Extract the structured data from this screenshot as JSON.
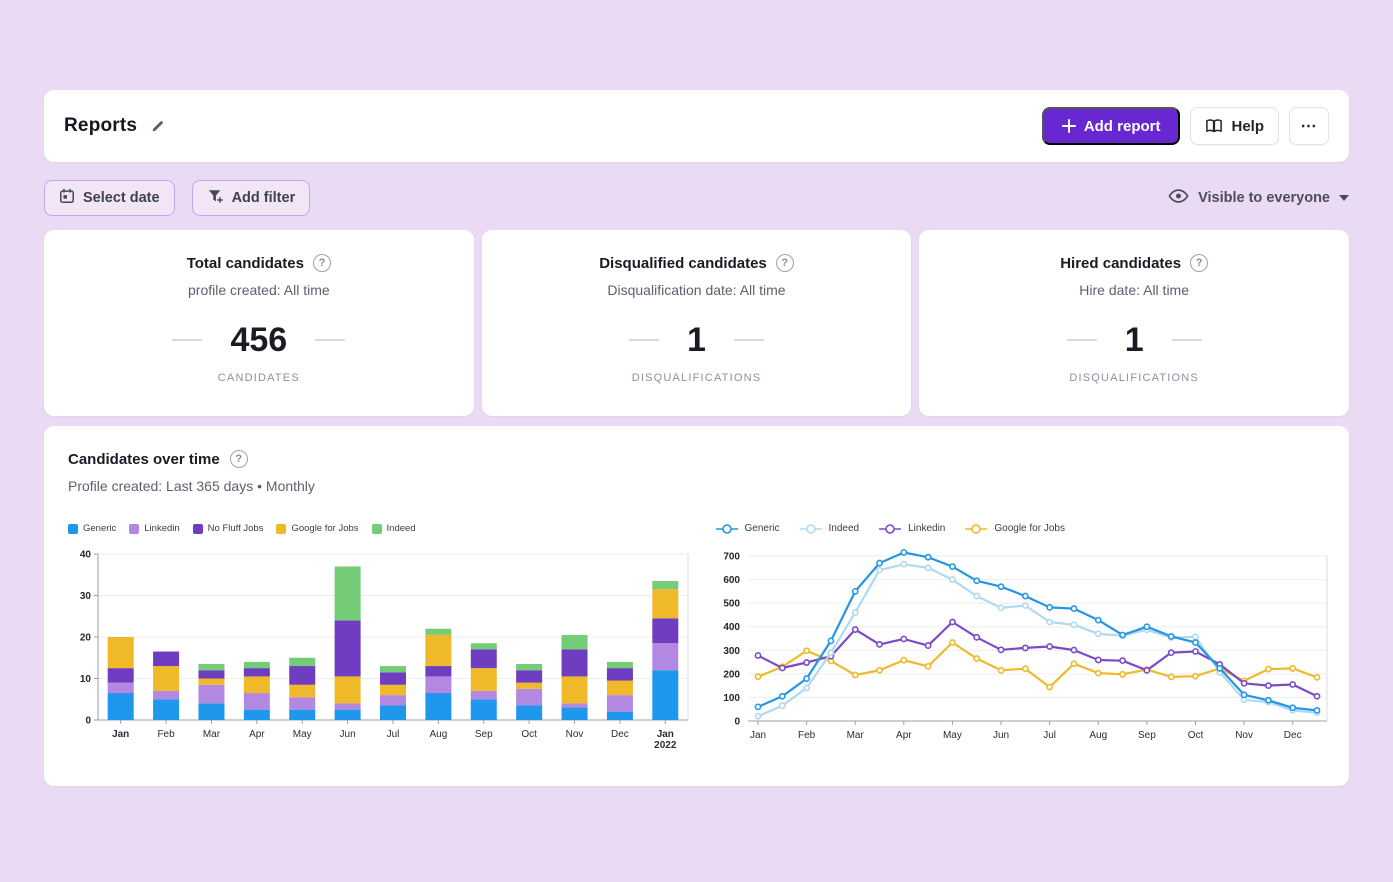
{
  "header": {
    "title": "Reports",
    "add_report_label": "Add report",
    "help_label": "Help",
    "more_label": "⋯"
  },
  "filters": {
    "select_date_label": "Select date",
    "add_filter_label": "Add filter",
    "visibility_label": "Visible to everyone"
  },
  "stats": [
    {
      "title": "Total candidates",
      "subtitle": "profile created: All time",
      "value": "456",
      "unit": "CANDIDATES"
    },
    {
      "title": "Disqualified candidates",
      "subtitle": "Disqualification date: All time",
      "value": "1",
      "unit": "DISQUALIFICATIONS"
    },
    {
      "title": "Hired candidates",
      "subtitle": "Hire date: All time",
      "value": "1",
      "unit": "DISQUALIFICATIONS"
    }
  ],
  "chart_card": {
    "title": "Candidates over time",
    "subtitle": "Profile created: Last 365 days • Monthly"
  },
  "chart_data": [
    {
      "type": "bar",
      "stacked": true,
      "title": "Candidates over time by source (stacked monthly)",
      "ylim": [
        0,
        40
      ],
      "yticks": [
        0,
        10,
        20,
        30,
        40
      ],
      "grid": true,
      "legend_position": "top",
      "legend": [
        {
          "name": "Generic",
          "color": "#1F97EC"
        },
        {
          "name": "Linkedin",
          "color": "#B388E0"
        },
        {
          "name": "No Fluff Jobs",
          "color": "#6F3EC0"
        },
        {
          "name": "Google for Jobs",
          "color": "#F0B929"
        },
        {
          "name": "Indeed",
          "color": "#75CC77"
        }
      ],
      "categories": [
        "Jan",
        "Feb",
        "Mar",
        "Apr",
        "May",
        "Jun",
        "Jul",
        "Aug",
        "Sep",
        "Oct",
        "Nov",
        "Dec",
        "Jan 2022"
      ],
      "bars": [
        {
          "label": "Jan",
          "sublabel": "",
          "bold": true,
          "segments": [
            [
              "Generic",
              6.5
            ],
            [
              "Linkedin",
              2.5
            ],
            [
              "No Fluff Jobs",
              3.5
            ],
            [
              "Google for Jobs",
              7.5
            ]
          ]
        },
        {
          "label": "Feb",
          "sublabel": "",
          "bold": false,
          "segments": [
            [
              "Generic",
              5
            ],
            [
              "Linkedin",
              2
            ],
            [
              "Google for Jobs",
              6
            ],
            [
              "No Fluff Jobs",
              3.5
            ]
          ]
        },
        {
          "label": "Mar",
          "sublabel": "",
          "bold": false,
          "segments": [
            [
              "Generic",
              4
            ],
            [
              "Linkedin",
              4.5
            ],
            [
              "Google for Jobs",
              1.5
            ],
            [
              "No Fluff Jobs",
              2
            ],
            [
              "Indeed",
              1.5
            ]
          ]
        },
        {
          "label": "Apr",
          "sublabel": "",
          "bold": false,
          "segments": [
            [
              "Generic",
              2.5
            ],
            [
              "Linkedin",
              4
            ],
            [
              "Google for Jobs",
              4
            ],
            [
              "No Fluff Jobs",
              2
            ],
            [
              "Indeed",
              1.5
            ]
          ]
        },
        {
          "label": "May",
          "sublabel": "",
          "bold": false,
          "segments": [
            [
              "Generic",
              2.5
            ],
            [
              "Linkedin",
              3
            ],
            [
              "Google for Jobs",
              3
            ],
            [
              "No Fluff Jobs",
              4.5
            ],
            [
              "Indeed",
              2
            ]
          ]
        },
        {
          "label": "Jun",
          "sublabel": "",
          "bold": false,
          "segments": [
            [
              "Generic",
              2.5
            ],
            [
              "Linkedin",
              1.5
            ],
            [
              "Google for Jobs",
              6.5
            ],
            [
              "No Fluff Jobs",
              13.5
            ],
            [
              "Indeed",
              13
            ]
          ]
        },
        {
          "label": "Jul",
          "sublabel": "",
          "bold": false,
          "segments": [
            [
              "Generic",
              3.5
            ],
            [
              "Linkedin",
              2.5
            ],
            [
              "Google for Jobs",
              2.5
            ],
            [
              "No Fluff Jobs",
              3
            ],
            [
              "Indeed",
              1.5
            ]
          ]
        },
        {
          "label": "Aug",
          "sublabel": "",
          "bold": false,
          "segments": [
            [
              "Generic",
              6.5
            ],
            [
              "Linkedin",
              4
            ],
            [
              "No Fluff Jobs",
              2.5
            ],
            [
              "Google for Jobs",
              7.5
            ],
            [
              "Indeed",
              1.5
            ]
          ]
        },
        {
          "label": "Sep",
          "sublabel": "",
          "bold": false,
          "segments": [
            [
              "Generic",
              5
            ],
            [
              "Linkedin",
              2
            ],
            [
              "Google for Jobs",
              5.5
            ],
            [
              "No Fluff Jobs",
              4.5
            ],
            [
              "Indeed",
              1.5
            ]
          ]
        },
        {
          "label": "Oct",
          "sublabel": "",
          "bold": false,
          "segments": [
            [
              "Generic",
              3.5
            ],
            [
              "Linkedin",
              4
            ],
            [
              "Google for Jobs",
              1.5
            ],
            [
              "No Fluff Jobs",
              3
            ],
            [
              "Indeed",
              1.5
            ]
          ]
        },
        {
          "label": "Nov",
          "sublabel": "",
          "bold": false,
          "segments": [
            [
              "Generic",
              3
            ],
            [
              "Linkedin",
              1
            ],
            [
              "Google for Jobs",
              6.5
            ],
            [
              "No Fluff Jobs",
              6.5
            ],
            [
              "Indeed",
              3.5
            ]
          ]
        },
        {
          "label": "Dec",
          "sublabel": "",
          "bold": false,
          "segments": [
            [
              "Generic",
              2
            ],
            [
              "Linkedin",
              4
            ],
            [
              "Google for Jobs",
              3.5
            ],
            [
              "No Fluff Jobs",
              3
            ],
            [
              "Indeed",
              1.5
            ]
          ]
        },
        {
          "label": "Jan",
          "sublabel": "2022",
          "bold": true,
          "segments": [
            [
              "Generic",
              12
            ],
            [
              "Linkedin",
              6.5
            ],
            [
              "No Fluff Jobs",
              6
            ],
            [
              "Google for Jobs",
              7
            ],
            [
              "Indeed",
              2
            ]
          ]
        }
      ]
    },
    {
      "type": "line",
      "title": "Candidates over time by source (semi-monthly)",
      "ylim": [
        0,
        700
      ],
      "yticks": [
        0,
        100,
        200,
        300,
        400,
        500,
        600,
        700
      ],
      "grid": true,
      "legend_position": "top",
      "x_labels": [
        "Jan",
        "Feb",
        "Mar",
        "Apr",
        "May",
        "Jun",
        "Jul",
        "Aug",
        "Sep",
        "Oct",
        "Nov",
        "Dec"
      ],
      "points_per_month": 2,
      "series": [
        {
          "name": "Generic",
          "color": "#2496E3",
          "values": [
            60,
            105,
            180,
            340,
            550,
            670,
            715,
            695,
            655,
            595,
            570,
            530,
            482,
            477,
            428,
            365,
            400,
            359,
            333,
            223,
            111,
            88,
            56,
            45
          ]
        },
        {
          "name": "Indeed",
          "color": "#AFD9F2",
          "values": [
            20,
            65,
            140,
            290,
            460,
            640,
            665,
            650,
            600,
            530,
            480,
            490,
            420,
            408,
            370,
            362,
            387,
            354,
            357,
            207,
            90,
            80,
            45,
            35
          ]
        },
        {
          "name": "Linkedin",
          "color": "#7A4BC8",
          "values": [
            278,
            225,
            248,
            275,
            388,
            325,
            348,
            320,
            420,
            355,
            302,
            310,
            316,
            301,
            259,
            256,
            215,
            290,
            295,
            240,
            160,
            150,
            155,
            105
          ]
        },
        {
          "name": "Google for Jobs",
          "color": "#F0B929",
          "values": [
            188,
            230,
            298,
            255,
            195,
            215,
            258,
            232,
            333,
            265,
            215,
            222,
            144,
            243,
            203,
            198,
            218,
            187,
            190,
            223,
            170,
            220,
            223,
            185
          ]
        }
      ]
    }
  ],
  "colors": {
    "page_bg": "#EBDAF3",
    "accent": "#6728D2",
    "chip_border": "#C9A2EE",
    "grid": "#EEEEF2",
    "axis": "#99A0AC"
  }
}
